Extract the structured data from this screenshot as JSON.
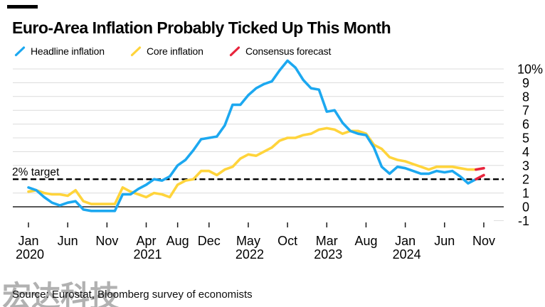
{
  "title": "Euro-Area Inflation Probably Ticked Up This Month",
  "legend": [
    {
      "label": "Headline inflation",
      "color": "#1CA8F0"
    },
    {
      "label": "Core inflation",
      "color": "#FFD43B"
    },
    {
      "label": "Consensus forecast",
      "color": "#E8243C"
    }
  ],
  "source": "Source: Eurostat, Bloomberg survey of economists",
  "watermark": "宏达科技",
  "chart_data": {
    "type": "line",
    "title": "Euro-Area Inflation Probably Ticked Up This Month",
    "frequency": "monthly",
    "x_start": "2020-01",
    "x_end": "2024-11",
    "ylim": [
      -1,
      10
    ],
    "grid": true,
    "legend_position": "top-left",
    "y_ticks": [
      10,
      9,
      8,
      7,
      6,
      5,
      4,
      3,
      2,
      1,
      0,
      -1
    ],
    "y_top_label": "10%",
    "x_ticks": [
      {
        "month_index": 0,
        "label": "Jan",
        "year": "2020"
      },
      {
        "month_index": 5,
        "label": "Jun"
      },
      {
        "month_index": 10,
        "label": "Nov"
      },
      {
        "month_index": 15,
        "label": "Apr",
        "year": "2021"
      },
      {
        "month_index": 19,
        "label": "Aug"
      },
      {
        "month_index": 23,
        "label": "Dec"
      },
      {
        "month_index": 28,
        "label": "May",
        "year": "2022"
      },
      {
        "month_index": 33,
        "label": "Oct"
      },
      {
        "month_index": 38,
        "label": "Mar",
        "year": "2023"
      },
      {
        "month_index": 43,
        "label": "Aug"
      },
      {
        "month_index": 48,
        "label": "Jan",
        "year": "2024"
      },
      {
        "month_index": 53,
        "label": "Jun"
      },
      {
        "month_index": 58,
        "label": "Nov"
      }
    ],
    "annotation": "2% target",
    "target_value": 2,
    "target_line_color": "#000000",
    "forecast_color": "#E8243C",
    "forecast_start_index": 57,
    "series": [
      {
        "name": "Core inflation",
        "color": "#FFD43B",
        "values": [
          1.1,
          1.2,
          1.0,
          0.9,
          0.9,
          0.8,
          1.2,
          0.4,
          0.2,
          0.2,
          0.2,
          0.2,
          1.4,
          1.1,
          0.9,
          0.7,
          1.0,
          0.9,
          0.7,
          1.6,
          1.9,
          2.0,
          2.6,
          2.6,
          2.3,
          2.7,
          2.9,
          3.5,
          3.8,
          3.7,
          4.0,
          4.3,
          4.8,
          5.0,
          5.0,
          5.2,
          5.3,
          5.6,
          5.7,
          5.6,
          5.3,
          5.5,
          5.5,
          5.3,
          4.5,
          4.2,
          3.6,
          3.4,
          3.3,
          3.1,
          2.9,
          2.7,
          2.9,
          2.9,
          2.9,
          2.8,
          2.7,
          2.7,
          2.8
        ]
      },
      {
        "name": "Headline inflation",
        "color": "#1CA8F0",
        "values": [
          1.4,
          1.2,
          0.7,
          0.3,
          0.1,
          0.3,
          0.4,
          -0.2,
          -0.3,
          -0.3,
          -0.3,
          -0.3,
          0.9,
          0.9,
          1.3,
          1.6,
          2.0,
          1.9,
          2.2,
          3.0,
          3.4,
          4.1,
          4.9,
          5.0,
          5.1,
          5.9,
          7.4,
          7.4,
          8.1,
          8.6,
          8.9,
          9.1,
          9.9,
          10.6,
          10.1,
          9.2,
          8.6,
          8.5,
          6.9,
          7.0,
          6.1,
          5.5,
          5.3,
          5.2,
          4.3,
          2.9,
          2.4,
          2.9,
          2.8,
          2.6,
          2.4,
          2.4,
          2.6,
          2.5,
          2.6,
          2.2,
          1.7,
          2.0,
          2.3
        ]
      }
    ]
  }
}
